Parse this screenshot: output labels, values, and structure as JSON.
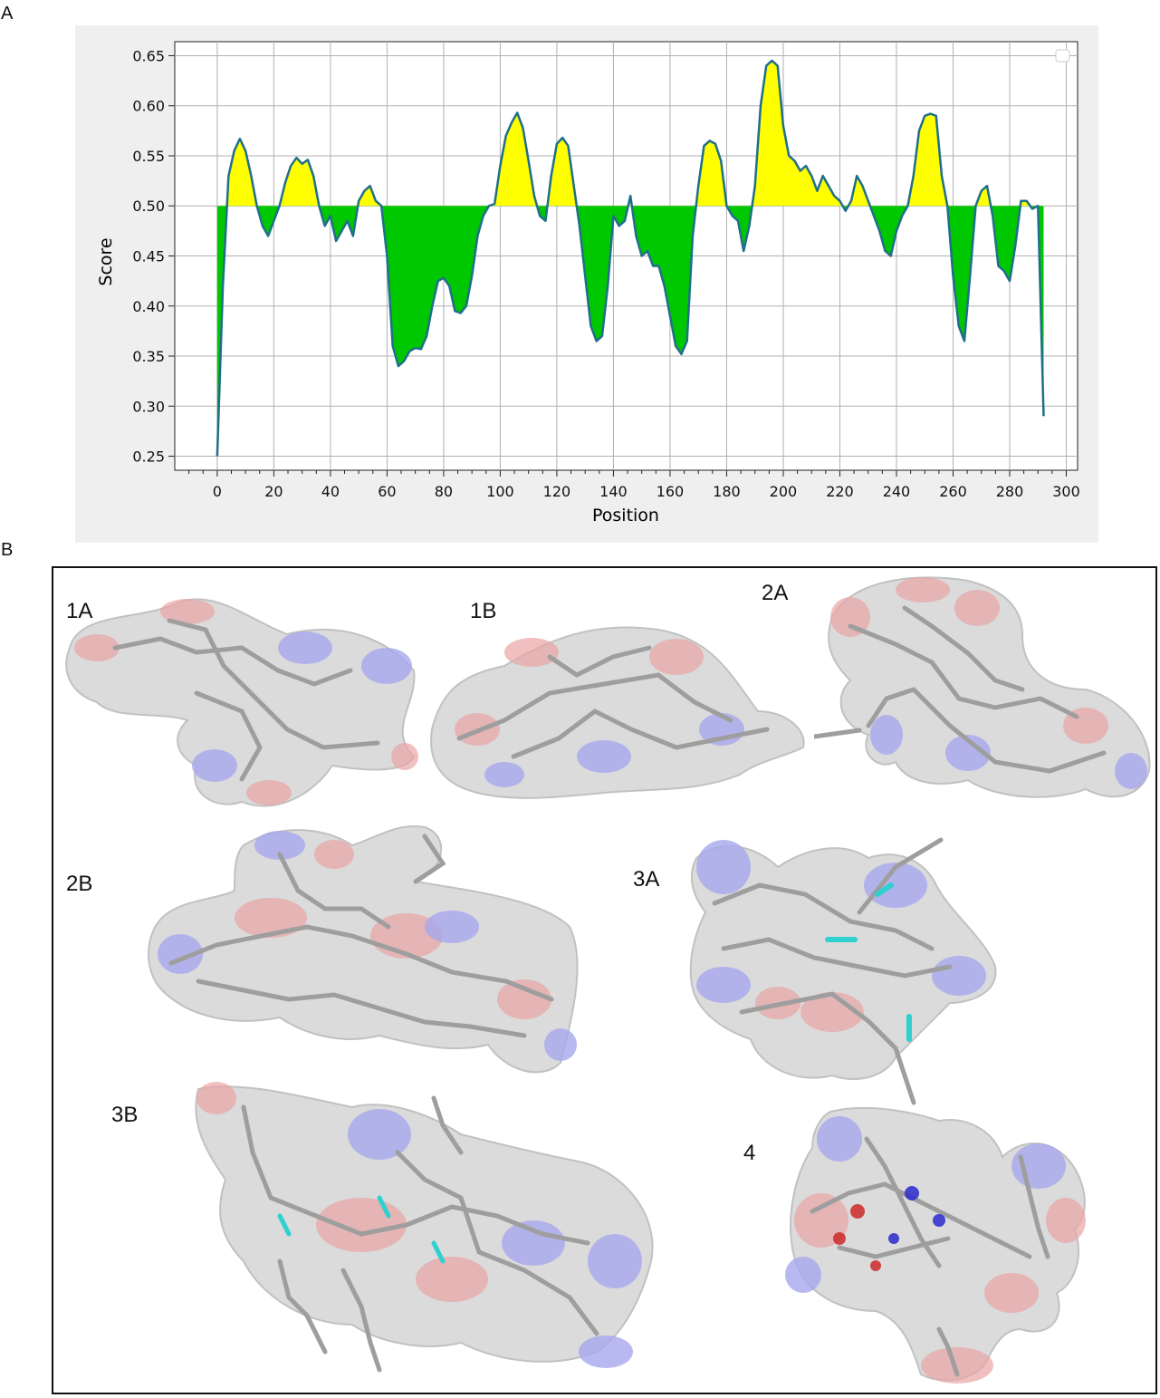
{
  "panels": {
    "a": "A",
    "b": "B"
  },
  "chart_data": {
    "type": "area",
    "xlabel": "Position",
    "ylabel": "Score",
    "threshold": 0.5,
    "xlim": [
      -15,
      304
    ],
    "ylim": [
      0.236,
      0.664
    ],
    "x_major_ticks": [
      0,
      20,
      40,
      60,
      80,
      100,
      120,
      140,
      160,
      180,
      200,
      220,
      240,
      260,
      280,
      300
    ],
    "x_tick_labels": [
      "0",
      "20",
      "40",
      "60",
      "80",
      "100",
      "120",
      "140",
      "160",
      "180",
      "200",
      "220",
      "240",
      "260",
      "280",
      "300"
    ],
    "x_minor_step": 5,
    "y_ticks": [
      0.25,
      0.3,
      0.35,
      0.4,
      0.45,
      0.5,
      0.55,
      0.6,
      0.65
    ],
    "y_tick_labels": [
      "0.25",
      "0.30",
      "0.35",
      "0.40",
      "0.45",
      "0.50",
      "0.55",
      "0.60",
      "0.65"
    ],
    "grid": true,
    "colors": {
      "above": "#ffff00",
      "below": "#00c800",
      "line": "#1f6f8b",
      "background": "#efefef"
    },
    "x": [
      0,
      2,
      4,
      6,
      8,
      10,
      12,
      14,
      16,
      18,
      20,
      22,
      24,
      26,
      28,
      30,
      32,
      34,
      36,
      38,
      40,
      42,
      44,
      46,
      48,
      50,
      52,
      54,
      56,
      58,
      60,
      62,
      64,
      66,
      68,
      70,
      72,
      74,
      76,
      78,
      80,
      82,
      84,
      86,
      88,
      90,
      92,
      94,
      96,
      98,
      100,
      102,
      104,
      106,
      108,
      110,
      112,
      114,
      116,
      118,
      120,
      122,
      124,
      126,
      128,
      130,
      132,
      134,
      136,
      138,
      140,
      142,
      144,
      146,
      148,
      150,
      152,
      154,
      156,
      158,
      160,
      162,
      164,
      166,
      168,
      170,
      172,
      174,
      176,
      178,
      180,
      182,
      184,
      186,
      188,
      190,
      192,
      194,
      196,
      198,
      200,
      202,
      204,
      206,
      208,
      210,
      212,
      214,
      216,
      218,
      220,
      222,
      224,
      226,
      228,
      230,
      232,
      234,
      236,
      238,
      240,
      242,
      244,
      246,
      248,
      250,
      252,
      254,
      256,
      258,
      260,
      262,
      264,
      266,
      268,
      270,
      272,
      274,
      276,
      278,
      280,
      282,
      284,
      286,
      288,
      290,
      292
    ],
    "y": [
      0.25,
      0.42,
      0.53,
      0.555,
      0.567,
      0.555,
      0.53,
      0.5,
      0.48,
      0.47,
      0.485,
      0.5,
      0.523,
      0.54,
      0.548,
      0.542,
      0.546,
      0.53,
      0.5,
      0.48,
      0.49,
      0.465,
      0.475,
      0.485,
      0.47,
      0.505,
      0.515,
      0.52,
      0.505,
      0.5,
      0.45,
      0.36,
      0.34,
      0.345,
      0.355,
      0.358,
      0.357,
      0.37,
      0.4,
      0.425,
      0.428,
      0.42,
      0.395,
      0.393,
      0.4,
      0.43,
      0.47,
      0.49,
      0.5,
      0.502,
      0.54,
      0.57,
      0.583,
      0.593,
      0.578,
      0.545,
      0.51,
      0.49,
      0.485,
      0.53,
      0.562,
      0.568,
      0.56,
      0.52,
      0.48,
      0.43,
      0.38,
      0.365,
      0.37,
      0.42,
      0.49,
      0.48,
      0.485,
      0.51,
      0.47,
      0.45,
      0.455,
      0.44,
      0.44,
      0.42,
      0.39,
      0.36,
      0.352,
      0.365,
      0.47,
      0.52,
      0.56,
      0.565,
      0.562,
      0.545,
      0.5,
      0.49,
      0.485,
      0.455,
      0.48,
      0.52,
      0.6,
      0.64,
      0.645,
      0.64,
      0.58,
      0.55,
      0.545,
      0.535,
      0.54,
      0.53,
      0.515,
      0.53,
      0.52,
      0.51,
      0.505,
      0.495,
      0.505,
      0.53,
      0.52,
      0.505,
      0.49,
      0.475,
      0.455,
      0.45,
      0.475,
      0.49,
      0.5,
      0.53,
      0.575,
      0.59,
      0.592,
      0.59,
      0.53,
      0.5,
      0.43,
      0.38,
      0.365,
      0.43,
      0.5,
      0.515,
      0.52,
      0.49,
      0.44,
      0.435,
      0.425,
      0.46,
      0.505,
      0.505,
      0.497,
      0.5,
      0.29
    ]
  },
  "panel_b": {
    "structures": [
      {
        "label": "1A"
      },
      {
        "label": "1B"
      },
      {
        "label": "2A"
      },
      {
        "label": "2B"
      },
      {
        "label": "3A"
      },
      {
        "label": "3B"
      },
      {
        "label": "4"
      }
    ]
  }
}
